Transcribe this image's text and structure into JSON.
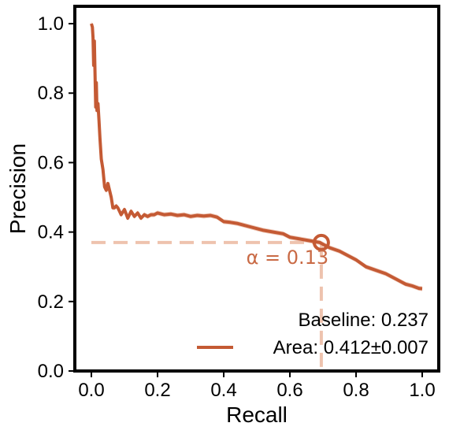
{
  "chart_data": {
    "type": "line",
    "xlabel": "Recall",
    "ylabel": "Precision",
    "xlim": [
      -0.05,
      1.05
    ],
    "ylim": [
      0.0,
      1.05
    ],
    "xticks": [
      0.0,
      0.2,
      0.4,
      0.6,
      0.8,
      1.0
    ],
    "xtick_labels": [
      "0.0",
      "0.2",
      "0.4",
      "0.6",
      "0.8",
      "1.0"
    ],
    "yticks": [
      0.0,
      0.2,
      0.4,
      0.6,
      0.8,
      1.0
    ],
    "ytick_labels": [
      "0.0",
      "0.2",
      "0.4",
      "0.6",
      "0.8",
      "1.0"
    ],
    "grid": false,
    "legend_position": "bottom-right",
    "legend": {
      "baseline_text": "Baseline: 0.237",
      "area_text": "Area: 0.412±0.007"
    },
    "colors": {
      "curve": "#c45a34",
      "band": "#e8b49c",
      "dashed": "#eec3ae",
      "annotation": "#c96a45"
    },
    "series": [
      {
        "x": [
          0.0,
          0.003,
          0.005,
          0.007,
          0.009,
          0.011,
          0.013,
          0.015,
          0.017,
          0.02,
          0.023,
          0.026,
          0.03,
          0.035,
          0.04,
          0.045,
          0.05,
          0.055,
          0.06,
          0.065,
          0.07,
          0.075,
          0.08,
          0.085,
          0.09,
          0.1,
          0.11,
          0.12,
          0.13,
          0.14,
          0.15,
          0.16,
          0.17,
          0.18,
          0.19,
          0.2,
          0.22,
          0.24,
          0.26,
          0.28,
          0.3,
          0.32,
          0.34,
          0.36,
          0.38,
          0.4,
          0.42,
          0.44,
          0.46,
          0.48,
          0.5,
          0.52,
          0.55,
          0.58,
          0.6,
          0.63,
          0.66,
          0.69,
          0.7,
          0.72,
          0.75,
          0.78,
          0.8,
          0.83,
          0.86,
          0.89,
          0.92,
          0.95,
          0.97,
          0.99,
          1.0
        ],
        "y": [
          1.0,
          0.99,
          0.96,
          0.88,
          0.95,
          0.86,
          0.76,
          0.83,
          0.75,
          0.77,
          0.72,
          0.67,
          0.61,
          0.58,
          0.53,
          0.52,
          0.54,
          0.52,
          0.5,
          0.47,
          0.47,
          0.475,
          0.47,
          0.46,
          0.45,
          0.465,
          0.44,
          0.46,
          0.445,
          0.455,
          0.44,
          0.45,
          0.445,
          0.45,
          0.45,
          0.455,
          0.45,
          0.452,
          0.448,
          0.45,
          0.445,
          0.448,
          0.446,
          0.448,
          0.443,
          0.43,
          0.428,
          0.425,
          0.42,
          0.415,
          0.41,
          0.405,
          0.4,
          0.395,
          0.385,
          0.38,
          0.375,
          0.37,
          0.365,
          0.355,
          0.345,
          0.33,
          0.32,
          0.3,
          0.29,
          0.28,
          0.265,
          0.25,
          0.245,
          0.238,
          0.237
        ]
      }
    ],
    "annotation": {
      "text": "α = 0.13",
      "point_x": 0.695,
      "point_y": 0.37
    }
  }
}
